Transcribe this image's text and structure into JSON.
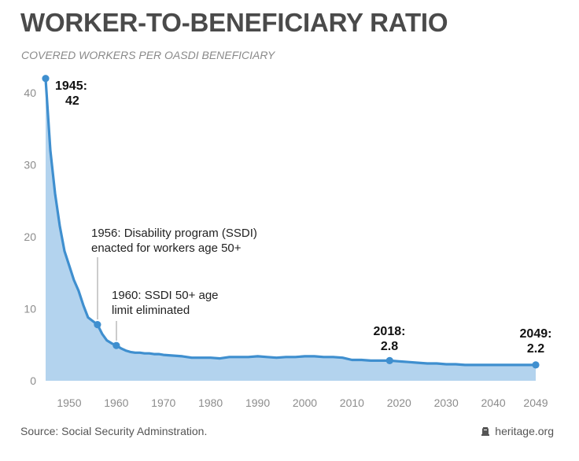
{
  "title": "WORKER-TO-BENEFICIARY RATIO",
  "subtitle": "COVERED WORKERS PER OASDI BENEFICIARY",
  "source": "Source: Social Security Adminstration.",
  "brand": {
    "icon": "heritage-bell-icon",
    "label": "heritage.org"
  },
  "colors": {
    "line": "#3f8fcf",
    "area": "#b3d3ee",
    "title": "#4a4a4a"
  },
  "chart_data": {
    "type": "area",
    "title": "",
    "xlabel": "",
    "ylabel": "",
    "xlim": [
      1945,
      2049
    ],
    "ylim": [
      0,
      42
    ],
    "x_ticks": [
      "1950",
      "1960",
      "1970",
      "1980",
      "1990",
      "2000",
      "2010",
      "2020",
      "2030",
      "2040",
      "2049"
    ],
    "y_ticks": [
      "0",
      "10",
      "20",
      "30",
      "40"
    ],
    "grid": false,
    "legend": "none",
    "series": [
      {
        "x": [
          1945,
          1946,
          1947,
          1948,
          1949,
          1950,
          1951,
          1952,
          1953,
          1954,
          1955,
          1956,
          1957,
          1958,
          1959,
          1960,
          1961,
          1962,
          1963,
          1964,
          1965,
          1966,
          1967,
          1968,
          1969,
          1970,
          1972,
          1974,
          1976,
          1978,
          1980,
          1982,
          1984,
          1986,
          1988,
          1990,
          1992,
          1994,
          1996,
          1998,
          2000,
          2002,
          2004,
          2006,
          2008,
          2010,
          2012,
          2014,
          2016,
          2018,
          2020,
          2022,
          2024,
          2026,
          2028,
          2030,
          2032,
          2034,
          2036,
          2040,
          2045,
          2049
        ],
        "values": [
          41.9,
          32,
          26,
          21.5,
          18,
          16,
          14,
          12.5,
          10.5,
          8.8,
          8.3,
          7.8,
          6.5,
          5.6,
          5.2,
          4.9,
          4.5,
          4.2,
          4.0,
          3.9,
          3.9,
          3.8,
          3.8,
          3.7,
          3.7,
          3.6,
          3.5,
          3.4,
          3.2,
          3.2,
          3.2,
          3.1,
          3.3,
          3.3,
          3.3,
          3.4,
          3.3,
          3.2,
          3.3,
          3.3,
          3.4,
          3.4,
          3.3,
          3.3,
          3.2,
          2.9,
          2.9,
          2.8,
          2.8,
          2.8,
          2.7,
          2.6,
          2.5,
          2.4,
          2.4,
          2.3,
          2.3,
          2.2,
          2.2,
          2.2,
          2.2,
          2.2
        ]
      }
    ],
    "annotations": [
      {
        "x": 1945,
        "y": 42,
        "lines": [
          "1945:",
          "42"
        ],
        "bold": true
      },
      {
        "x": 1956,
        "y": 7.8,
        "lines": [
          "1956: Disability program (SSDI)",
          "enacted for workers age 50+"
        ],
        "bold": false
      },
      {
        "x": 1960,
        "y": 4.9,
        "lines": [
          "1960: SSDI 50+ age",
          "limit eliminated"
        ],
        "bold": false
      },
      {
        "x": 2018,
        "y": 2.8,
        "lines": [
          "2018:",
          "2.8"
        ],
        "bold": true
      },
      {
        "x": 2049,
        "y": 2.2,
        "lines": [
          "2049:",
          "2.2"
        ],
        "bold": true
      }
    ]
  }
}
